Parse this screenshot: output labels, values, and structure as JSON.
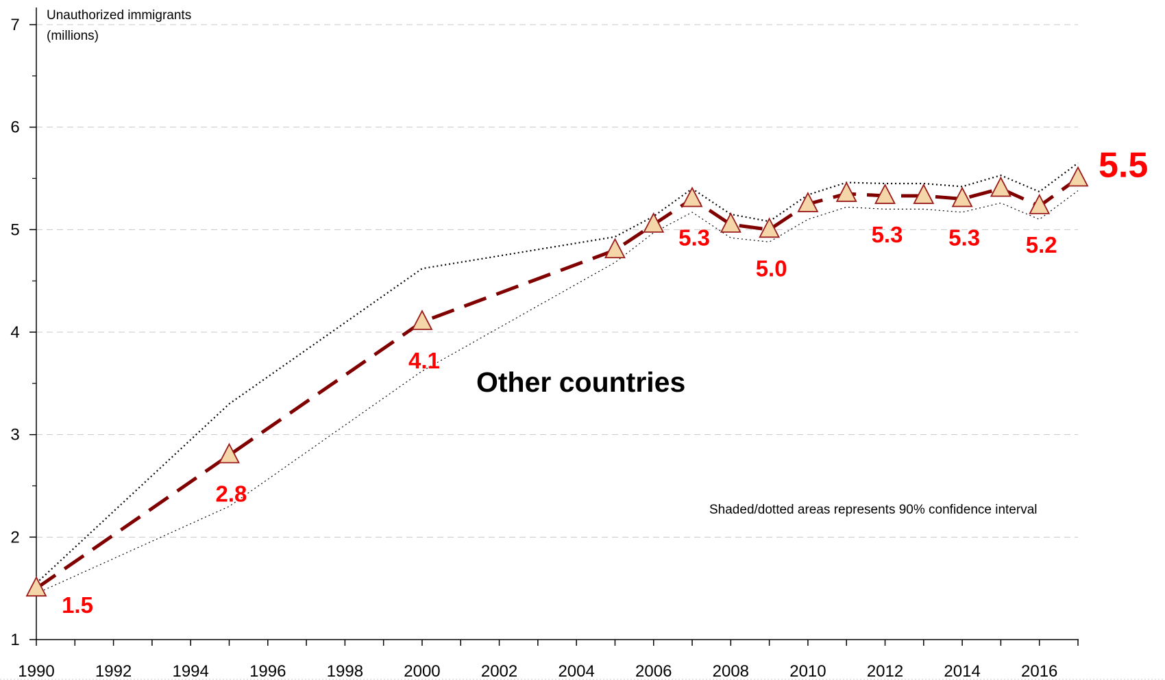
{
  "chart_data": {
    "type": "line",
    "ylabel_line1": "Unauthorized immigrants",
    "ylabel_line2": "(millions)",
    "series_label": "Other countries",
    "annotation": "Shaded/dotted areas represents 90% confidence interval",
    "xlim": [
      1990,
      2017
    ],
    "ylim": [
      1,
      7
    ],
    "x_ticks": [
      1990,
      1992,
      1994,
      1996,
      1998,
      2000,
      2002,
      2004,
      2006,
      2008,
      2010,
      2012,
      2014,
      2016
    ],
    "y_ticks": [
      1,
      2,
      3,
      4,
      5,
      6,
      7
    ],
    "grid": "horizontal dashed",
    "estimate": {
      "x": [
        1990,
        1995,
        2000,
        2005,
        2006,
        2007,
        2008,
        2009,
        2010,
        2011,
        2012,
        2013,
        2014,
        2015,
        2016,
        2017
      ],
      "y": [
        1.5,
        2.8,
        4.1,
        4.8,
        5.05,
        5.3,
        5.05,
        5.0,
        5.25,
        5.35,
        5.33,
        5.33,
        5.3,
        5.4,
        5.23,
        5.5
      ]
    },
    "ci_upper": {
      "x": [
        1990,
        1995,
        2000,
        2005,
        2006,
        2007,
        2008,
        2009,
        2010,
        2011,
        2012,
        2013,
        2014,
        2015,
        2016,
        2017
      ],
      "y": [
        1.55,
        3.3,
        4.62,
        4.93,
        5.13,
        5.4,
        5.15,
        5.08,
        5.34,
        5.46,
        5.45,
        5.45,
        5.42,
        5.53,
        5.37,
        5.65
      ]
    },
    "ci_lower": {
      "x": [
        1990,
        1995,
        2000,
        2005,
        2006,
        2007,
        2008,
        2009,
        2010,
        2011,
        2012,
        2013,
        2014,
        2015,
        2016,
        2017
      ],
      "y": [
        1.45,
        2.3,
        3.62,
        4.68,
        4.97,
        5.17,
        4.92,
        4.88,
        5.1,
        5.22,
        5.2,
        5.2,
        5.17,
        5.26,
        5.1,
        5.38
      ]
    },
    "data_labels": [
      {
        "x": 1990,
        "text": "1.5",
        "size": "normal"
      },
      {
        "x": 1995,
        "text": "2.8",
        "size": "normal"
      },
      {
        "x": 2000,
        "text": "4.1",
        "size": "normal"
      },
      {
        "x": 2007,
        "text": "5.3",
        "size": "normal"
      },
      {
        "x": 2009,
        "text": "5.0",
        "size": "normal"
      },
      {
        "x": 2012,
        "text": "5.3",
        "size": "normal"
      },
      {
        "x": 2014,
        "text": "5.3",
        "size": "normal"
      },
      {
        "x": 2016,
        "text": "5.2",
        "size": "normal"
      },
      {
        "x": 2017,
        "text": "5.5",
        "size": "large"
      }
    ],
    "colors": {
      "line": "#800000",
      "marker_fill": "#f5d6a8",
      "marker_stroke": "#9b1a1a",
      "data_label": "#ff0000",
      "grid": "#c8c8c8"
    }
  }
}
